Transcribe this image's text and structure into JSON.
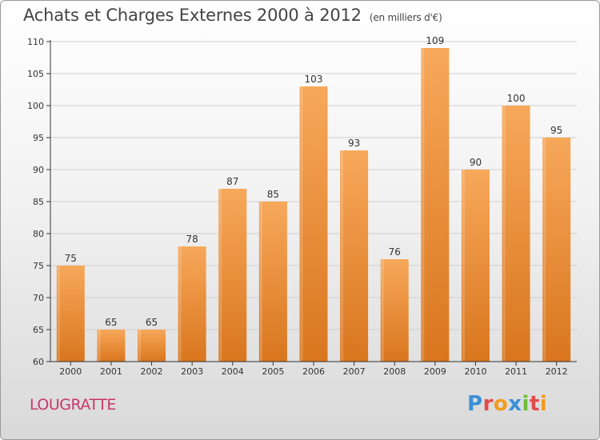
{
  "header": {
    "title": "Achats et Charges Externes 2000 à 2012",
    "unit": "(en milliers d'€)"
  },
  "footer": {
    "commune": "LOUGRATTE",
    "logo_text": "Proxiti",
    "logo_colors": [
      "#3b8fd6",
      "#e34b4b",
      "#f29b1c",
      "#3b8fd6",
      "#6cbf3a",
      "#e34b4b",
      "#f29b1c"
    ]
  },
  "colors": {
    "bar_top": "#f7a85a",
    "bar_bottom": "#d9761e",
    "axis": "#333333",
    "grid": "#cfcfcf",
    "text": "#333333",
    "commune": "#c8376a"
  },
  "chart_data": {
    "type": "bar",
    "title": "Achats et Charges Externes 2000 à 2012",
    "subtitle": "(en milliers d'€)",
    "xlabel": "",
    "ylabel": "",
    "categories": [
      "2000",
      "2001",
      "2002",
      "2003",
      "2004",
      "2005",
      "2006",
      "2007",
      "2008",
      "2009",
      "2010",
      "2011",
      "2012"
    ],
    "values": [
      75,
      65,
      65,
      78,
      87,
      85,
      103,
      93,
      76,
      109,
      90,
      100,
      95
    ],
    "ylim": [
      60,
      110
    ],
    "yticks": [
      60,
      65,
      70,
      75,
      80,
      85,
      90,
      95,
      100,
      105,
      110
    ],
    "grid": true,
    "legend": "none"
  }
}
